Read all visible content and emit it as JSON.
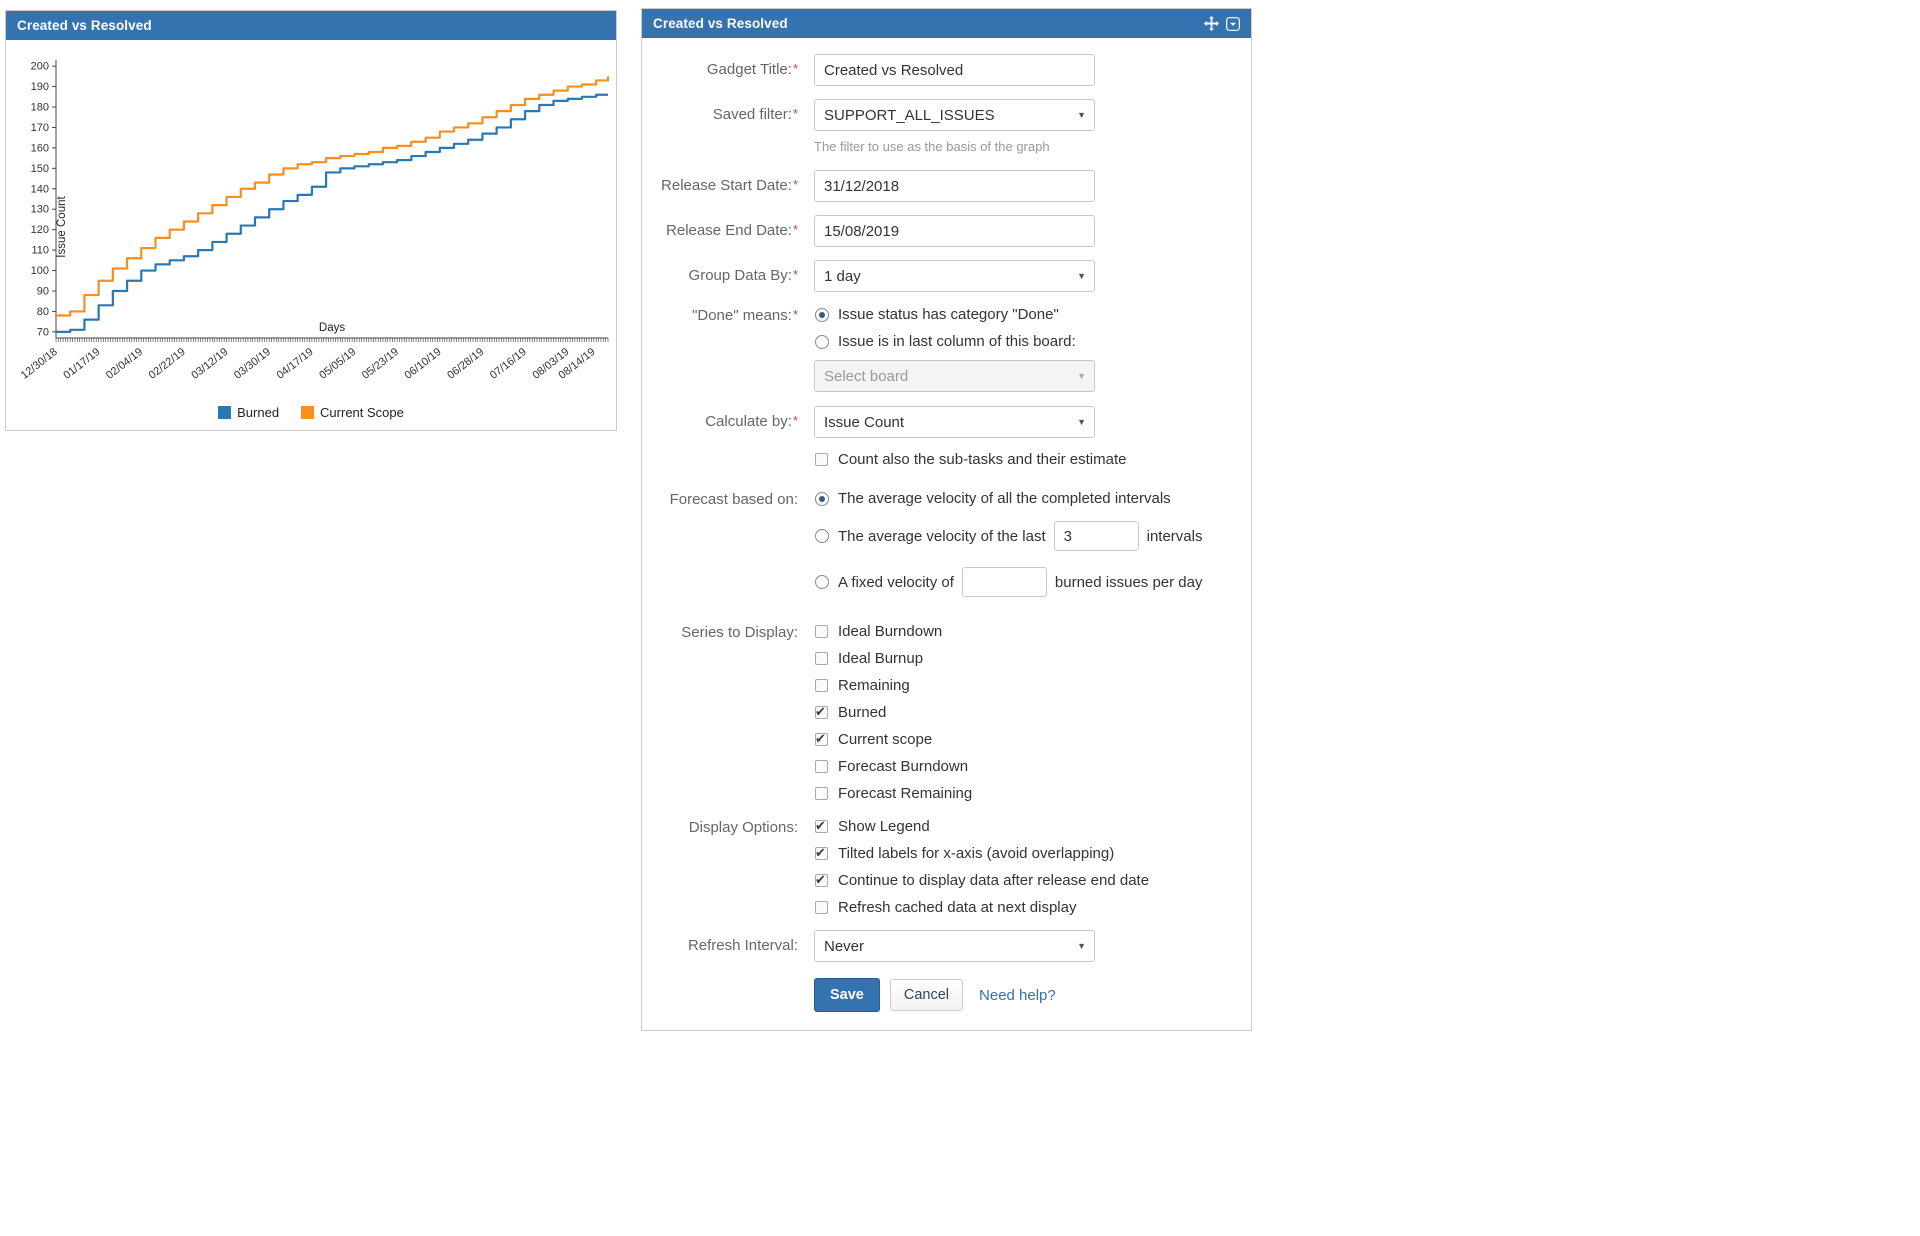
{
  "colors": {
    "header": "#3572b0",
    "accent": "#3572b0",
    "required": "#d04437",
    "burned": "#2778b5",
    "current_scope": "#f78f1e"
  },
  "chart_panel": {
    "title": "Created vs Resolved"
  },
  "chart_data": {
    "type": "line",
    "title": "Created vs Resolved",
    "xlabel": "Days",
    "ylabel": "Issue Count",
    "axis_range": [
      67,
      203
    ],
    "yticks": [
      70,
      80,
      90,
      100,
      110,
      120,
      130,
      140,
      150,
      160,
      170,
      180,
      190,
      200
    ],
    "total_days": 233,
    "x_days": [
      0,
      6,
      12,
      18,
      24,
      30,
      36,
      42,
      48,
      54,
      60,
      66,
      72,
      78,
      84,
      90,
      96,
      102,
      108,
      114,
      120,
      126,
      132,
      138,
      144,
      150,
      156,
      162,
      168,
      174,
      180,
      186,
      192,
      198,
      204,
      210,
      216,
      222,
      228,
      233
    ],
    "xticks": [
      {
        "label": "12/30/18",
        "day": 0
      },
      {
        "label": "01/17/19",
        "day": 18
      },
      {
        "label": "02/04/19",
        "day": 36
      },
      {
        "label": "02/22/19",
        "day": 54
      },
      {
        "label": "03/12/19",
        "day": 72
      },
      {
        "label": "03/30/19",
        "day": 90
      },
      {
        "label": "04/17/19",
        "day": 108
      },
      {
        "label": "05/05/19",
        "day": 126
      },
      {
        "label": "05/23/19",
        "day": 144
      },
      {
        "label": "06/10/19",
        "day": 162
      },
      {
        "label": "06/28/19",
        "day": 180
      },
      {
        "label": "07/16/19",
        "day": 198
      },
      {
        "label": "08/03/19",
        "day": 216
      },
      {
        "label": "08/14/19",
        "day": 227
      }
    ],
    "series": [
      {
        "name": "Burned",
        "color": "#2778b5",
        "values": [
          70,
          71,
          76,
          83,
          90,
          95,
          100,
          103,
          105,
          107,
          110,
          114,
          118,
          122,
          126,
          130,
          134,
          137,
          141,
          148,
          150,
          151,
          152,
          153,
          154,
          156,
          158,
          160,
          162,
          164,
          167,
          170,
          174,
          178,
          181,
          183,
          184,
          185,
          186,
          186
        ]
      },
      {
        "name": "Current Scope",
        "color": "#f78f1e",
        "values": [
          78,
          80,
          88,
          95,
          101,
          106,
          111,
          116,
          120,
          124,
          128,
          132,
          136,
          140,
          143,
          147,
          150,
          152,
          153,
          155,
          156,
          157,
          158,
          160,
          161,
          163,
          165,
          168,
          170,
          172,
          175,
          178,
          181,
          184,
          186,
          188,
          190,
          191,
          193,
          195
        ]
      }
    ],
    "legend_position": "bottom",
    "tilted_x_labels": true,
    "grid": false
  },
  "config_panel": {
    "title": "Created vs Resolved",
    "required_marker": "*",
    "fields": {
      "gadget_title": {
        "label": "Gadget Title:",
        "value": "Created vs Resolved"
      },
      "saved_filter": {
        "label": "Saved filter:",
        "value": "SUPPORT_ALL_ISSUES",
        "help": "The filter to use as the basis of the graph"
      },
      "release_start": {
        "label": "Release Start Date:",
        "value": "31/12/2018"
      },
      "release_end": {
        "label": "Release End Date:",
        "value": "15/08/2019"
      },
      "group_by": {
        "label": "Group Data By:",
        "value": "1 day"
      },
      "done_means": {
        "label": "\"Done\" means:",
        "options": [
          {
            "label": "Issue status has category \"Done\"",
            "checked": true
          },
          {
            "label": "Issue is in last column of this board:",
            "checked": false
          }
        ],
        "board_placeholder": "Select board"
      },
      "calculate_by": {
        "label": "Calculate by:",
        "value": "Issue Count"
      },
      "subtask_checkbox": {
        "label": "Count also the sub-tasks and their estimate",
        "checked": false
      },
      "forecast": {
        "label": "Forecast based on:",
        "options": [
          {
            "label": "The average velocity of all the completed intervals",
            "checked": true
          },
          {
            "label_before": "The average velocity of the last",
            "value": "3",
            "label_after": "intervals",
            "checked": false
          },
          {
            "label_before": "A fixed velocity of",
            "value": "",
            "label_after": "burned issues per day",
            "checked": false
          }
        ]
      },
      "series_display": {
        "label": "Series to Display:",
        "options": [
          {
            "label": "Ideal Burndown",
            "checked": false
          },
          {
            "label": "Ideal Burnup",
            "checked": false
          },
          {
            "label": "Remaining",
            "checked": false
          },
          {
            "label": "Burned",
            "checked": true
          },
          {
            "label": "Current scope",
            "checked": true
          },
          {
            "label": "Forecast Burndown",
            "checked": false
          },
          {
            "label": "Forecast Remaining",
            "checked": false
          }
        ]
      },
      "display_options": {
        "label": "Display Options:",
        "options": [
          {
            "label": "Show Legend",
            "checked": true
          },
          {
            "label": "Tilted labels for x-axis (avoid overlapping)",
            "checked": true
          },
          {
            "label": "Continue to display data after release end date",
            "checked": true
          },
          {
            "label": "Refresh cached data at next display",
            "checked": false
          }
        ]
      },
      "refresh_interval": {
        "label": "Refresh Interval:",
        "value": "Never"
      }
    },
    "buttons": {
      "save": "Save",
      "cancel": "Cancel",
      "help": "Need help?"
    }
  }
}
